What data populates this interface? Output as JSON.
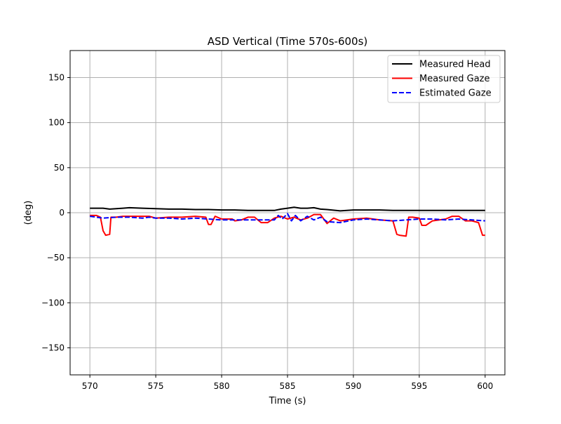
{
  "chart_data": {
    "type": "line",
    "title": "ASD Vertical (Time 570s-600s)",
    "xlabel": "Time (s)",
    "ylabel": "(deg)",
    "xlim": [
      568.5,
      601.5
    ],
    "ylim": [
      -180,
      180
    ],
    "xticks": [
      570,
      575,
      580,
      585,
      590,
      595,
      600
    ],
    "xtick_labels": [
      "570",
      "575",
      "580",
      "585",
      "590",
      "595",
      "600"
    ],
    "yticks": [
      -150,
      -100,
      -50,
      0,
      50,
      100,
      150
    ],
    "ytick_labels": [
      "−150",
      "−100",
      "−50",
      "0",
      "50",
      "100",
      "150"
    ],
    "grid": true,
    "legend_position": "top-right",
    "series": [
      {
        "name": "Measured Head",
        "color": "#000000",
        "style": "solid",
        "x": [
          570,
          571,
          571.5,
          572,
          572.5,
          573,
          574,
          575,
          576,
          577,
          578,
          579,
          580,
          581,
          582,
          583,
          584,
          584.5,
          585,
          585.5,
          586,
          586.5,
          587,
          587.5,
          588,
          589,
          590,
          591,
          592,
          593,
          594,
          595,
          596,
          597,
          598,
          599,
          600
        ],
        "y": [
          5,
          5,
          4,
          4.5,
          5,
          5.5,
          5,
          4.5,
          4,
          4,
          3.5,
          3.5,
          3,
          3,
          2.5,
          2.5,
          2.5,
          4,
          5,
          6,
          5,
          5,
          5.5,
          4,
          3.5,
          2,
          3,
          3,
          3,
          2.5,
          2.5,
          2.5,
          2.5,
          2.5,
          2.5,
          2.5,
          2.5
        ]
      },
      {
        "name": "Measured Gaze",
        "color": "#ff0000",
        "style": "solid",
        "x": [
          570,
          570.5,
          570.8,
          571,
          571.2,
          571.5,
          571.6,
          572,
          572.5,
          573,
          574,
          574.5,
          575,
          576,
          577,
          578,
          578.8,
          579,
          579.2,
          579.5,
          580,
          580.8,
          581,
          581.5,
          582,
          582.5,
          583,
          583.5,
          584,
          584.5,
          585,
          585.5,
          586,
          586.5,
          587,
          587.5,
          588,
          588.5,
          589,
          590,
          591,
          592,
          593,
          593.3,
          593.5,
          594,
          594.2,
          594.5,
          595,
          595.2,
          595.5,
          596,
          597,
          597.5,
          598,
          598.5,
          599,
          599.5,
          599.8,
          600
        ],
        "y": [
          -3,
          -3,
          -5,
          -20,
          -25,
          -24,
          -5,
          -5,
          -4,
          -4,
          -4,
          -4,
          -6,
          -5,
          -5,
          -4,
          -5,
          -13,
          -13,
          -4,
          -7,
          -7,
          -9,
          -8,
          -5,
          -5,
          -11,
          -11,
          -6,
          -4,
          -7,
          -5,
          -8,
          -6,
          -2,
          -2,
          -12,
          -6,
          -9,
          -7,
          -6,
          -8,
          -9,
          -24,
          -25,
          -26,
          -5,
          -5,
          -6,
          -14,
          -14,
          -9,
          -7,
          -4,
          -4,
          -9,
          -9,
          -11,
          -25,
          -25
        ]
      },
      {
        "name": "Estimated Gaze",
        "color": "#0000ff",
        "style": "dashed",
        "x": [
          570,
          571,
          572,
          573,
          574,
          574.5,
          575,
          576,
          577,
          578,
          579,
          580,
          581,
          582,
          583,
          584,
          584.3,
          584.6,
          585,
          585.3,
          585.6,
          586,
          586.5,
          587,
          587.5,
          588,
          589,
          590,
          591,
          592,
          593,
          594,
          595,
          596,
          597,
          598,
          599,
          600
        ],
        "y": [
          -4,
          -6,
          -5,
          -5,
          -6,
          -5,
          -6,
          -6,
          -7,
          -6,
          -7,
          -8,
          -8,
          -8,
          -8,
          -8,
          -3,
          -7,
          -1,
          -9,
          -3,
          -9,
          -4,
          -8,
          -5,
          -10,
          -11,
          -8,
          -7,
          -8,
          -9,
          -8,
          -7,
          -7,
          -8,
          -7,
          -8,
          -9
        ]
      }
    ]
  }
}
